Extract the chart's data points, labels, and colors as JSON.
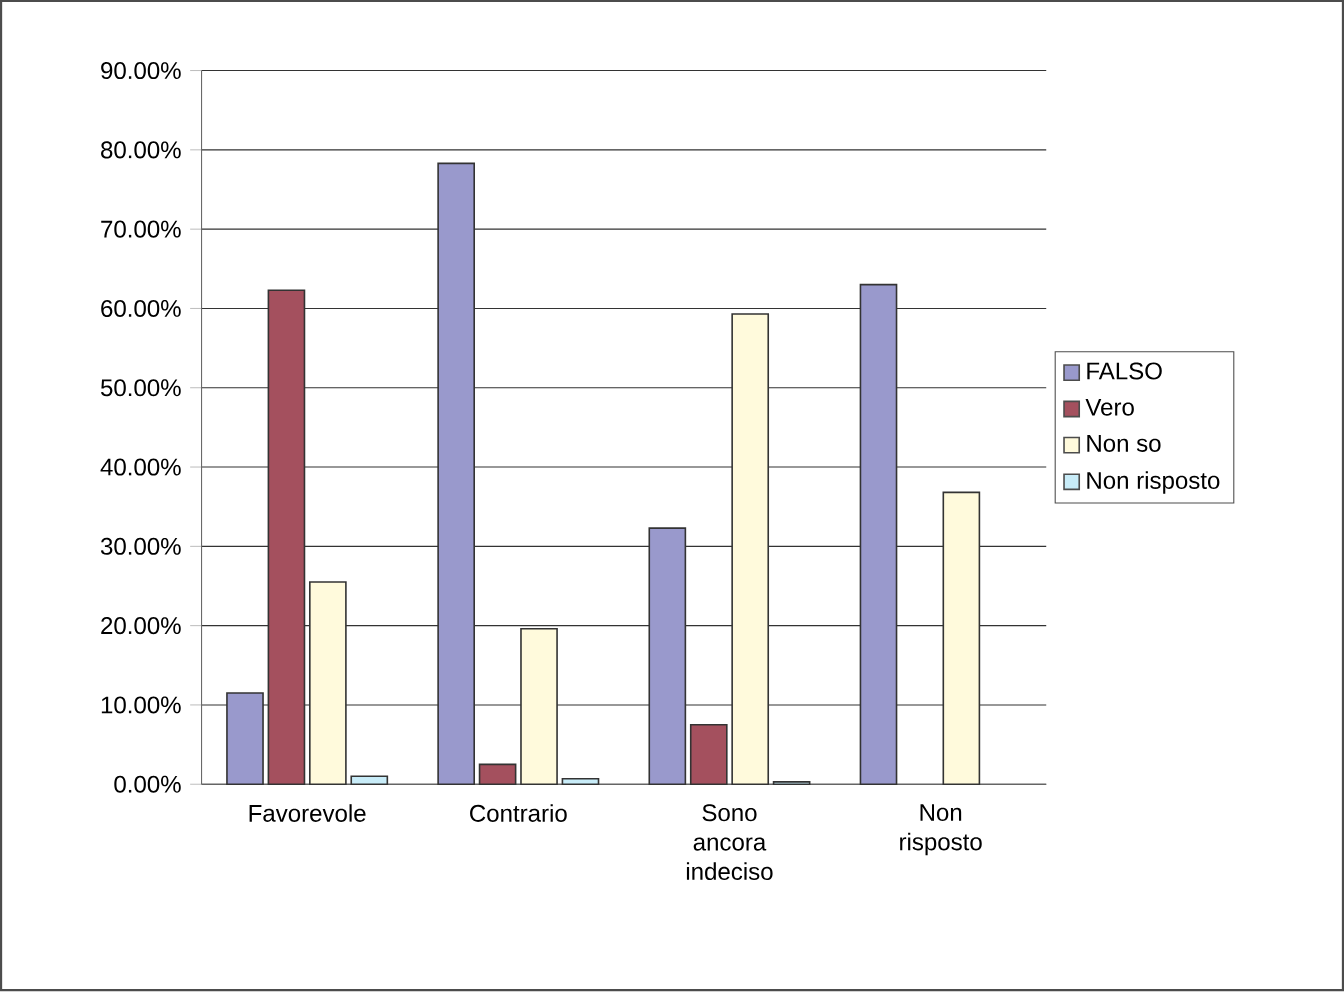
{
  "chart_data": {
    "type": "bar",
    "categories": [
      "Favorevole",
      "Contrario",
      "Sono ancora indeciso",
      "Non risposto"
    ],
    "series": [
      {
        "name": "FALSO",
        "color": "#9999cc",
        "values": [
          11.5,
          78.3,
          32.3,
          63.0
        ]
      },
      {
        "name": "Vero",
        "color": "#a4505e",
        "values": [
          62.3,
          2.5,
          7.5,
          null
        ]
      },
      {
        "name": "Non so",
        "color": "#fffadc",
        "values": [
          25.5,
          19.6,
          59.3,
          36.8
        ]
      },
      {
        "name": "Non risposto",
        "color": "#c8ecf8",
        "values": [
          1.0,
          0.7,
          0.3,
          null
        ]
      }
    ],
    "ylim": [
      0,
      90
    ],
    "yticks": [
      {
        "value": 0,
        "label": "0.00%"
      },
      {
        "value": 10,
        "label": "10.00%"
      },
      {
        "value": 20,
        "label": "20.00%"
      },
      {
        "value": 30,
        "label": "30.00%"
      },
      {
        "value": 40,
        "label": "40.00%"
      },
      {
        "value": 50,
        "label": "50.00%"
      },
      {
        "value": 60,
        "label": "60.00%"
      },
      {
        "value": 70,
        "label": "70.00%"
      },
      {
        "value": 80,
        "label": "80.00%"
      },
      {
        "value": 90,
        "label": "90.00%"
      }
    ],
    "grid": "y",
    "legend": "right"
  }
}
